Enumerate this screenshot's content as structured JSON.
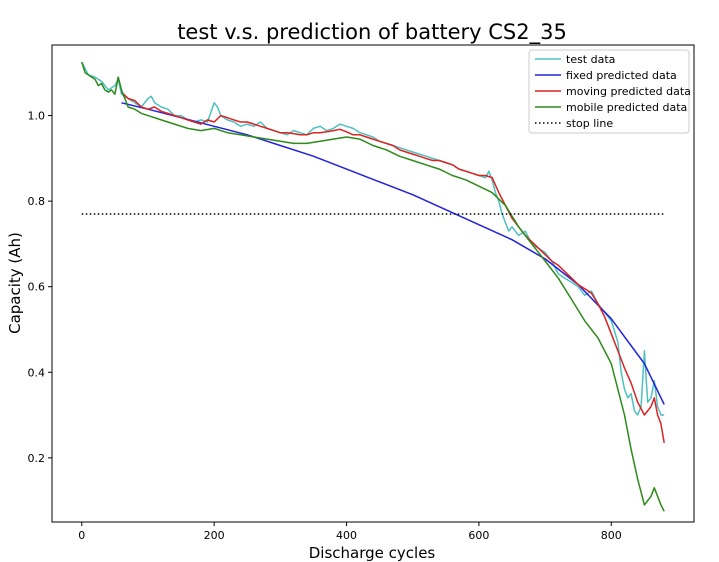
{
  "chart_data": {
    "type": "line",
    "title": "test v.s. prediction of battery CS2_35",
    "xlabel": "Discharge cycles",
    "ylabel": "Capacity (Ah)",
    "xlim": [
      -45,
      925
    ],
    "ylim": [
      0.05,
      1.165
    ],
    "xticks": [
      0,
      200,
      400,
      600,
      800
    ],
    "yticks": [
      0.2,
      0.4,
      0.6,
      0.8,
      1.0
    ],
    "xtick_labels": [
      "0",
      "200",
      "400",
      "600",
      "800"
    ],
    "ytick_labels": [
      "0.2",
      "0.4",
      "0.6",
      "0.8",
      "1.0"
    ],
    "legend_position": "top-right",
    "series": [
      {
        "name": "test data",
        "color": "#4fc0c0",
        "x": [
          0,
          5,
          10,
          20,
          30,
          40,
          50,
          55,
          60,
          70,
          80,
          90,
          100,
          105,
          110,
          120,
          130,
          140,
          150,
          160,
          170,
          180,
          190,
          200,
          205,
          210,
          220,
          230,
          240,
          250,
          260,
          270,
          280,
          290,
          300,
          310,
          320,
          330,
          340,
          350,
          360,
          370,
          380,
          390,
          400,
          410,
          420,
          430,
          440,
          450,
          460,
          470,
          480,
          490,
          500,
          510,
          520,
          530,
          540,
          550,
          560,
          570,
          580,
          590,
          600,
          610,
          615,
          620,
          625,
          630,
          635,
          640,
          645,
          650,
          660,
          670,
          680,
          690,
          700,
          710,
          720,
          730,
          740,
          750,
          760,
          770,
          780,
          790,
          800,
          810,
          815,
          820,
          825,
          830,
          835,
          840,
          845,
          850,
          855,
          860,
          865,
          870,
          875,
          880
        ],
        "y": [
          1.125,
          1.11,
          1.095,
          1.09,
          1.08,
          1.06,
          1.07,
          1.085,
          1.05,
          1.04,
          1.03,
          1.02,
          1.04,
          1.045,
          1.03,
          1.02,
          1.015,
          1.0,
          1.0,
          0.99,
          0.985,
          0.99,
          0.985,
          1.03,
          1.02,
          1.0,
          0.99,
          0.985,
          0.975,
          0.98,
          0.975,
          0.985,
          0.97,
          0.965,
          0.96,
          0.955,
          0.965,
          0.96,
          0.955,
          0.97,
          0.975,
          0.965,
          0.97,
          0.98,
          0.975,
          0.97,
          0.96,
          0.955,
          0.95,
          0.94,
          0.935,
          0.93,
          0.925,
          0.92,
          0.915,
          0.91,
          0.905,
          0.9,
          0.895,
          0.89,
          0.885,
          0.875,
          0.87,
          0.865,
          0.86,
          0.855,
          0.87,
          0.85,
          0.82,
          0.8,
          0.77,
          0.75,
          0.73,
          0.74,
          0.72,
          0.73,
          0.7,
          0.69,
          0.68,
          0.66,
          0.63,
          0.62,
          0.61,
          0.6,
          0.58,
          0.59,
          0.56,
          0.54,
          0.52,
          0.47,
          0.4,
          0.36,
          0.34,
          0.35,
          0.31,
          0.3,
          0.32,
          0.45,
          0.33,
          0.34,
          0.38,
          0.32,
          0.3,
          0.3
        ]
      },
      {
        "name": "fixed predicted data",
        "color": "#2222dd",
        "x": [
          60,
          100,
          150,
          200,
          250,
          300,
          350,
          400,
          450,
          500,
          550,
          600,
          650,
          700,
          750,
          800,
          850,
          880
        ],
        "y": [
          1.03,
          1.015,
          0.995,
          0.975,
          0.955,
          0.93,
          0.905,
          0.875,
          0.845,
          0.815,
          0.78,
          0.745,
          0.71,
          0.665,
          0.605,
          0.525,
          0.42,
          0.325
        ]
      },
      {
        "name": "moving predicted data",
        "color": "#dd2222",
        "x": [
          60,
          70,
          80,
          90,
          100,
          110,
          120,
          130,
          140,
          150,
          160,
          170,
          180,
          190,
          200,
          210,
          220,
          230,
          240,
          250,
          260,
          270,
          280,
          290,
          300,
          310,
          320,
          330,
          340,
          350,
          360,
          370,
          380,
          390,
          400,
          410,
          420,
          430,
          440,
          450,
          460,
          470,
          480,
          490,
          500,
          510,
          520,
          530,
          540,
          550,
          560,
          570,
          580,
          590,
          600,
          610,
          620,
          630,
          640,
          650,
          660,
          670,
          680,
          690,
          700,
          710,
          720,
          730,
          740,
          750,
          760,
          770,
          780,
          790,
          800,
          810,
          820,
          830,
          840,
          850,
          860,
          865,
          870,
          875,
          880
        ],
        "y": [
          1.055,
          1.04,
          1.035,
          1.02,
          1.015,
          1.02,
          1.01,
          1.005,
          1.0,
          0.995,
          0.99,
          0.985,
          0.98,
          0.99,
          0.985,
          1.0,
          0.995,
          0.99,
          0.985,
          0.985,
          0.98,
          0.975,
          0.97,
          0.965,
          0.96,
          0.96,
          0.958,
          0.955,
          0.955,
          0.96,
          0.96,
          0.962,
          0.965,
          0.968,
          0.962,
          0.955,
          0.955,
          0.95,
          0.945,
          0.94,
          0.935,
          0.93,
          0.92,
          0.915,
          0.91,
          0.905,
          0.9,
          0.895,
          0.895,
          0.89,
          0.885,
          0.875,
          0.87,
          0.865,
          0.86,
          0.86,
          0.855,
          0.82,
          0.79,
          0.76,
          0.74,
          0.72,
          0.705,
          0.69,
          0.675,
          0.66,
          0.65,
          0.635,
          0.62,
          0.605,
          0.595,
          0.585,
          0.56,
          0.53,
          0.49,
          0.45,
          0.41,
          0.375,
          0.33,
          0.3,
          0.32,
          0.34,
          0.3,
          0.28,
          0.235
        ]
      },
      {
        "name": "mobile predicted data",
        "color": "#2d8a1a",
        "x": [
          0,
          5,
          10,
          15,
          20,
          25,
          30,
          35,
          40,
          45,
          50,
          55,
          60,
          70,
          80,
          90,
          100,
          120,
          140,
          160,
          180,
          200,
          220,
          240,
          260,
          280,
          300,
          320,
          340,
          360,
          380,
          400,
          420,
          440,
          460,
          480,
          500,
          520,
          540,
          560,
          580,
          600,
          620,
          640,
          660,
          680,
          700,
          720,
          740,
          760,
          780,
          800,
          810,
          820,
          830,
          840,
          850,
          855,
          860,
          865,
          870,
          875,
          880
        ],
        "y": [
          1.125,
          1.1,
          1.095,
          1.09,
          1.085,
          1.07,
          1.075,
          1.06,
          1.055,
          1.06,
          1.05,
          1.09,
          1.06,
          1.02,
          1.015,
          1.005,
          1.0,
          0.99,
          0.98,
          0.97,
          0.965,
          0.97,
          0.96,
          0.955,
          0.95,
          0.945,
          0.94,
          0.935,
          0.935,
          0.94,
          0.945,
          0.95,
          0.945,
          0.93,
          0.92,
          0.905,
          0.895,
          0.885,
          0.875,
          0.86,
          0.85,
          0.835,
          0.82,
          0.79,
          0.74,
          0.7,
          0.66,
          0.62,
          0.57,
          0.52,
          0.48,
          0.42,
          0.36,
          0.3,
          0.22,
          0.15,
          0.09,
          0.1,
          0.11,
          0.13,
          0.11,
          0.09,
          0.075
        ]
      },
      {
        "name": "stop line",
        "color": "#000000",
        "dashed": true,
        "x": [
          0,
          880
        ],
        "y": [
          0.77,
          0.77
        ]
      }
    ]
  }
}
